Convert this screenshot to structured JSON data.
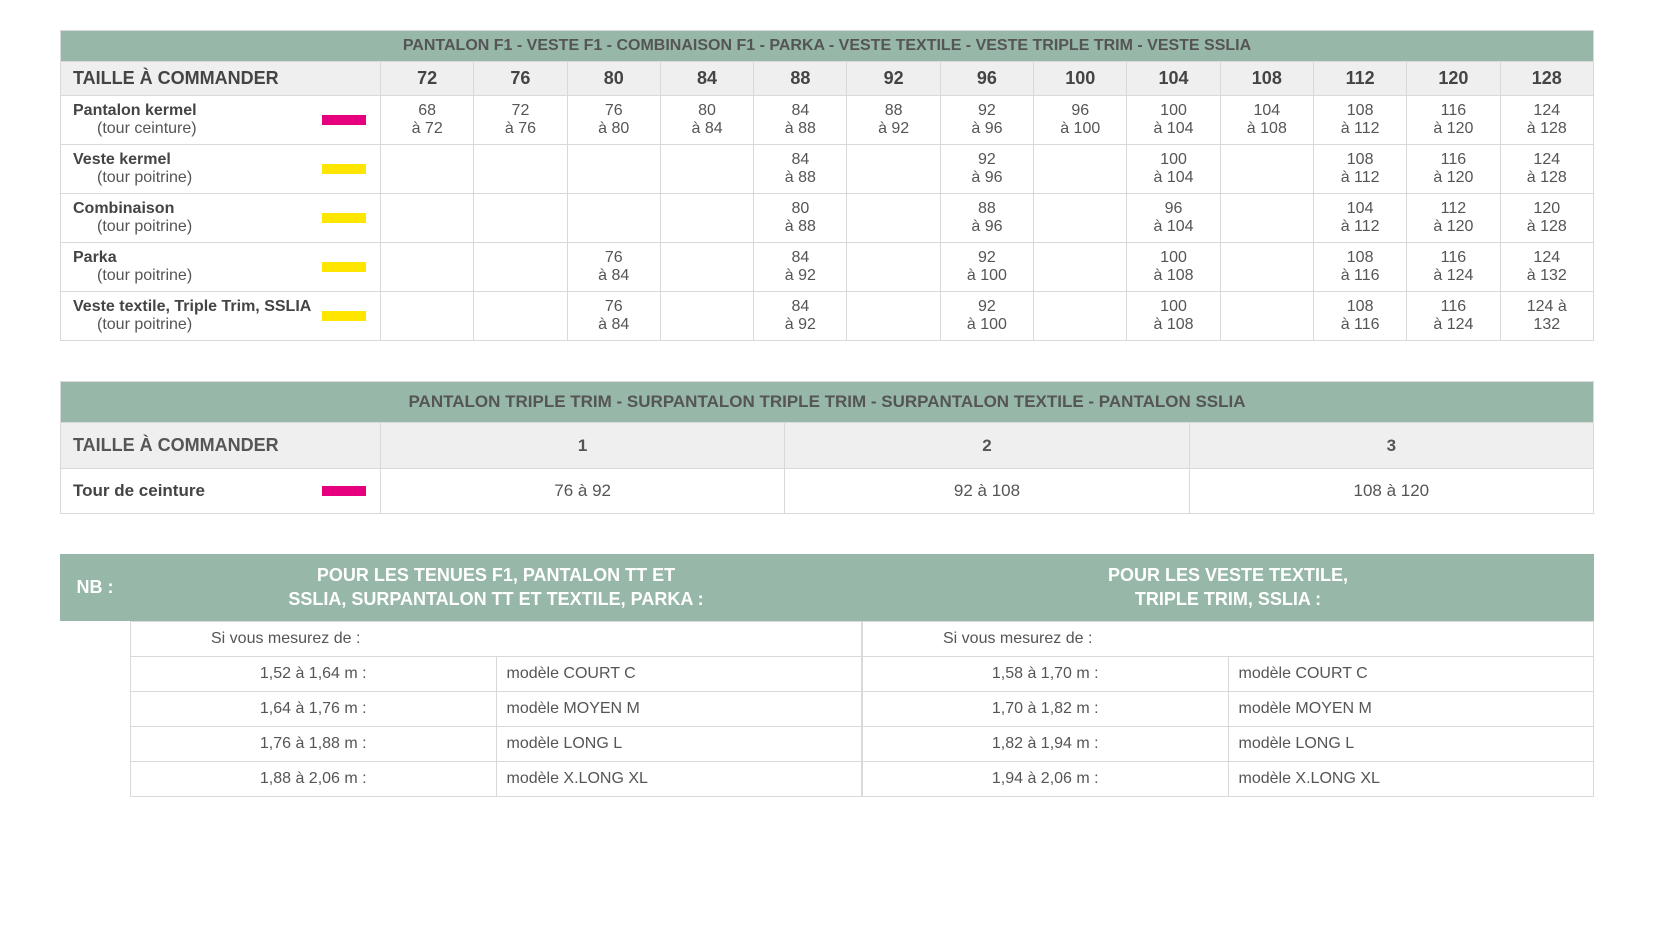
{
  "colors": {
    "band": "#97b8a8",
    "band_text": "#ffffff",
    "grid": "#d9d9d9",
    "header_bg": "#efefef",
    "pink": "#e6007e",
    "yellow": "#ffe600"
  },
  "table1": {
    "title": "PANTALON F1 - VESTE F1 - COMBINAISON F1 - PARKA - VESTE TEXTILE - VESTE TRIPLE TRIM - VESTE SSLIA",
    "header_label": "TAILLE À COMMANDER",
    "sizes": [
      "72",
      "76",
      "80",
      "84",
      "88",
      "92",
      "96",
      "100",
      "104",
      "108",
      "112",
      "120",
      "128"
    ],
    "rows": [
      {
        "name": "Pantalon kermel",
        "sub": "(tour ceinture)",
        "swatch": "pink",
        "cells": [
          "68\nà 72",
          "72\nà 76",
          "76\nà 80",
          "80\nà 84",
          "84\nà 88",
          "88\nà 92",
          "92\nà 96",
          "96\nà 100",
          "100\nà 104",
          "104\nà 108",
          "108\nà 112",
          "116\nà 120",
          "124\nà 128"
        ]
      },
      {
        "name": "Veste kermel",
        "sub": "(tour poitrine)",
        "swatch": "yellow",
        "cells": [
          "",
          "",
          "",
          "",
          "84\nà 88",
          "",
          "92\nà 96",
          "",
          "100\nà 104",
          "",
          "108\nà 112",
          "116\nà 120",
          "124\nà 128"
        ]
      },
      {
        "name": "Combinaison",
        "sub": "(tour poitrine)",
        "swatch": "yellow",
        "cells": [
          "",
          "",
          "",
          "",
          "80\nà 88",
          "",
          "88\nà 96",
          "",
          "96\nà 104",
          "",
          "104\nà 112",
          "112\nà 120",
          "120\nà 128"
        ]
      },
      {
        "name": "Parka",
        "sub": "(tour poitrine)",
        "swatch": "yellow",
        "cells": [
          "",
          "",
          "76\nà 84",
          "",
          "84\nà 92",
          "",
          "92\nà 100",
          "",
          "100\nà 108",
          "",
          "108\nà 116",
          "116\nà 124",
          "124\nà 132"
        ]
      },
      {
        "name": "Veste textile, Triple Trim, SSLIA",
        "sub": "(tour poitrine)",
        "swatch": "yellow",
        "cells": [
          "",
          "",
          "76\nà 84",
          "",
          "84\nà 92",
          "",
          "92\nà 100",
          "",
          "100\nà 108",
          "",
          "108\nà 116",
          "116\nà 124",
          "124 à\n132"
        ]
      }
    ]
  },
  "table2": {
    "title": "PANTALON TRIPLE TRIM - SURPANTALON TRIPLE TRIM - SURPANTALON TEXTILE - PANTALON SSLIA",
    "header_label": "TAILLE À COMMANDER",
    "sizes": [
      "1",
      "2",
      "3"
    ],
    "row": {
      "name": "Tour de ceinture",
      "swatch": "pink",
      "cells": [
        "76 à 92",
        "92 à 108",
        "108 à 120"
      ]
    }
  },
  "table3": {
    "nb": "NB :",
    "cols": [
      {
        "title": "POUR LES TENUES F1, PANTALON TT ET\nSSLIA, SURPANTALON TT ET TEXTILE, PARKA :",
        "intro": "Si vous mesurez de :",
        "rows": [
          [
            "1,52 à 1,64 m :",
            "modèle COURT C"
          ],
          [
            "1,64 à 1,76 m :",
            "modèle MOYEN M"
          ],
          [
            "1,76 à 1,88 m :",
            "modèle LONG L"
          ],
          [
            "1,88 à 2,06 m :",
            "modèle X.LONG XL"
          ]
        ]
      },
      {
        "title": "POUR LES VESTE TEXTILE,\nTRIPLE TRIM, SSLIA :",
        "intro": "Si vous mesurez de :",
        "rows": [
          [
            "1,58 à 1,70 m :",
            "modèle COURT C"
          ],
          [
            "1,70 à 1,82 m :",
            "modèle MOYEN M"
          ],
          [
            "1,82 à 1,94 m :",
            "modèle LONG L"
          ],
          [
            "1,94 à 2,06 m :",
            "modèle X.LONG XL"
          ]
        ]
      }
    ]
  }
}
